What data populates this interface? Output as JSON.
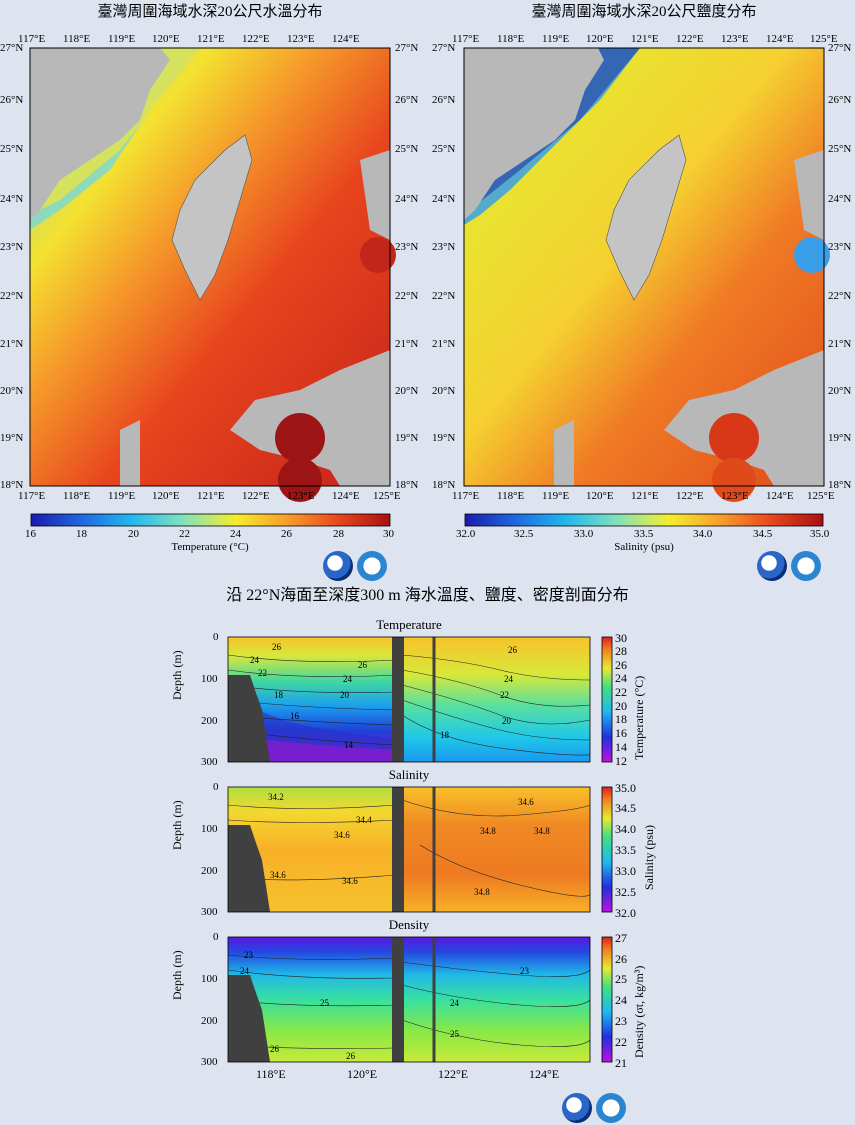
{
  "maps": {
    "temp": {
      "title": "臺灣周圍海域水深20公尺水溫分布",
      "cb_ticks": [
        "16",
        "18",
        "20",
        "22",
        "24",
        "26",
        "28",
        "30"
      ],
      "cb_label": "Temperature (°C)",
      "cb_colors": [
        "#1a1ab0",
        "#1f68e0",
        "#20b8ef",
        "#7fe0c0",
        "#f4ee2c",
        "#f8a02a",
        "#ea4a1e",
        "#a80f12"
      ]
    },
    "sal": {
      "title": "臺灣周圍海域水深20公尺鹽度分布",
      "cb_ticks": [
        "32.0",
        "32.5",
        "33.0",
        "33.5",
        "34.0",
        "34.5",
        "35.0"
      ],
      "cb_label": "Salinity (psu)",
      "cb_colors": [
        "#1a1ab0",
        "#1f68e0",
        "#20b8ef",
        "#7fe0c0",
        "#f4ee2c",
        "#f8a02a",
        "#ea4a1e",
        "#a80f12"
      ]
    },
    "lon_ticks": [
      "117°E",
      "118°E",
      "119°E",
      "120°E",
      "121°E",
      "122°E",
      "123°E",
      "124°E",
      "125°E"
    ],
    "lat_ticks": [
      "27°N",
      "26°N",
      "25°N",
      "24°N",
      "23°N",
      "22°N",
      "21°N",
      "20°N",
      "19°N",
      "18°N"
    ]
  },
  "section": {
    "title": "沿 22°N海面至深度300 m 海水溫度、鹽度、密度剖面分布",
    "depth_label": "Depth (m)",
    "depth_ticks": [
      "0",
      "100",
      "200",
      "300"
    ],
    "lon_ticks": [
      "118°E",
      "120°E",
      "122°E",
      "124°E"
    ],
    "panels": {
      "temp": {
        "title": "Temperature",
        "cb_label": "Temperature (°C)",
        "cb_ticks": [
          "30",
          "28",
          "26",
          "24",
          "22",
          "20",
          "18",
          "16",
          "14",
          "12"
        ],
        "contours": [
          "26",
          "24",
          "22",
          "20",
          "18",
          "16",
          "14",
          "26",
          "24",
          "22",
          "20",
          "18",
          "26",
          "24"
        ]
      },
      "sal": {
        "title": "Salinity",
        "cb_label": "Salinity (psu)",
        "cb_ticks": [
          "35.0",
          "34.5",
          "34.0",
          "33.5",
          "33.0",
          "32.5",
          "32.0"
        ],
        "contours": [
          "34.2",
          "34.4",
          "34.6",
          "34.6",
          "34.6",
          "34.8",
          "34.8",
          "34.8",
          "34.6"
        ]
      },
      "dens": {
        "title": "Density",
        "cb_label": "Density (σt, kg/m³)",
        "cb_ticks": [
          "27",
          "26",
          "25",
          "24",
          "23",
          "22",
          "21"
        ],
        "contours": [
          "23",
          "24",
          "25",
          "26",
          "23",
          "24",
          "25",
          "26"
        ]
      }
    }
  },
  "logos": {
    "odb": "ODB",
    "iontu": "IONTU"
  }
}
